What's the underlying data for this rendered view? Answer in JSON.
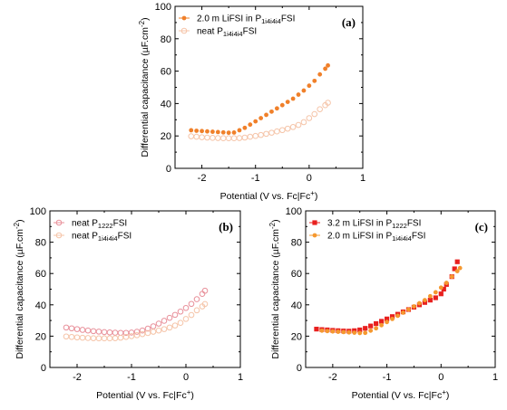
{
  "chart_data": [
    {
      "panel": "(a)",
      "type": "scatter",
      "xlabel_prefix": "Potential (V vs. Fc|Fc",
      "xlabel_sup": "+",
      "xlabel_suffix": ")",
      "ylabel_prefix": "Differential capacitance (µF.cm",
      "ylabel_sup": "-2",
      "ylabel_suffix": ")",
      "xlim": [
        -2.5,
        1
      ],
      "ylim": [
        0,
        100
      ],
      "xticks": [
        "-2",
        "-1",
        "0",
        "1"
      ],
      "yticks": [
        "0",
        "20",
        "40",
        "60",
        "80",
        "100"
      ],
      "legend_position": "top-left",
      "series": [
        {
          "name_main": "2.0 m LiFSI in P",
          "name_sub": "1i4i4i4",
          "name_tail": "FSI",
          "color": "#f0802a",
          "marker": "filled-circle",
          "points": [
            [
              -2.2,
              23.5
            ],
            [
              -2.1,
              23.2
            ],
            [
              -2.0,
              23.0
            ],
            [
              -1.9,
              22.8
            ],
            [
              -1.8,
              22.6
            ],
            [
              -1.7,
              22.4
            ],
            [
              -1.6,
              22.2
            ],
            [
              -1.5,
              22.0
            ],
            [
              -1.4,
              22.1
            ],
            [
              -1.3,
              23.5
            ],
            [
              -1.2,
              25.0
            ],
            [
              -1.1,
              27.0
            ],
            [
              -1.0,
              29.0
            ],
            [
              -0.9,
              31.0
            ],
            [
              -0.8,
              33.0
            ],
            [
              -0.7,
              35.0
            ],
            [
              -0.6,
              37.0
            ],
            [
              -0.5,
              39.0
            ],
            [
              -0.4,
              41.0
            ],
            [
              -0.3,
              43.0
            ],
            [
              -0.2,
              45.5
            ],
            [
              -0.1,
              48.0
            ],
            [
              0.0,
              51.0
            ],
            [
              0.1,
              54.0
            ],
            [
              0.2,
              58.0
            ],
            [
              0.3,
              61.5
            ],
            [
              0.35,
              63.5
            ]
          ]
        },
        {
          "name_main": "neat P",
          "name_sub": "1i4i4i4",
          "name_tail": "FSI",
          "color": "#f5c4a8",
          "marker": "hollow-circle",
          "points": [
            [
              -2.2,
              19.8
            ],
            [
              -2.1,
              19.5
            ],
            [
              -2.0,
              19.2
            ],
            [
              -1.9,
              19.0
            ],
            [
              -1.8,
              18.8
            ],
            [
              -1.7,
              18.7
            ],
            [
              -1.6,
              18.6
            ],
            [
              -1.5,
              18.6
            ],
            [
              -1.4,
              18.6
            ],
            [
              -1.3,
              18.7
            ],
            [
              -1.2,
              19.0
            ],
            [
              -1.1,
              19.5
            ],
            [
              -1.0,
              20.0
            ],
            [
              -0.9,
              20.6
            ],
            [
              -0.8,
              21.3
            ],
            [
              -0.7,
              22.0
            ],
            [
              -0.6,
              22.8
            ],
            [
              -0.5,
              23.6
            ],
            [
              -0.4,
              24.5
            ],
            [
              -0.3,
              25.5
            ],
            [
              -0.2,
              26.8
            ],
            [
              -0.1,
              28.5
            ],
            [
              0.0,
              31.0
            ],
            [
              0.1,
              33.5
            ],
            [
              0.2,
              36.5
            ],
            [
              0.3,
              39.0
            ],
            [
              0.35,
              40.5
            ]
          ]
        }
      ]
    },
    {
      "panel": "(b)",
      "type": "scatter",
      "xlabel_prefix": "Potential (V vs. Fc|Fc",
      "xlabel_sup": "+",
      "xlabel_suffix": ")",
      "ylabel_prefix": "Differential capacitance (µF.cm",
      "ylabel_sup": "-2",
      "ylabel_suffix": ")",
      "xlim": [
        -2.5,
        1
      ],
      "ylim": [
        0,
        100
      ],
      "xticks": [
        "-2",
        "-1",
        "0",
        "1"
      ],
      "yticks": [
        "0",
        "20",
        "40",
        "60",
        "80",
        "100"
      ],
      "legend_position": "top-left",
      "series": [
        {
          "name_main": "neat P",
          "name_sub": "1222",
          "name_tail": "FSI",
          "color": "#e8909a",
          "marker": "hollow-circle",
          "points": [
            [
              -2.2,
              25.5
            ],
            [
              -2.1,
              25.0
            ],
            [
              -2.0,
              24.5
            ],
            [
              -1.9,
              24.0
            ],
            [
              -1.8,
              23.6
            ],
            [
              -1.7,
              23.2
            ],
            [
              -1.6,
              22.9
            ],
            [
              -1.5,
              22.6
            ],
            [
              -1.4,
              22.4
            ],
            [
              -1.3,
              22.2
            ],
            [
              -1.2,
              22.1
            ],
            [
              -1.1,
              22.1
            ],
            [
              -1.0,
              22.3
            ],
            [
              -0.9,
              22.8
            ],
            [
              -0.8,
              23.6
            ],
            [
              -0.7,
              24.8
            ],
            [
              -0.6,
              26.3
            ],
            [
              -0.5,
              28.0
            ],
            [
              -0.4,
              29.8
            ],
            [
              -0.3,
              31.7
            ],
            [
              -0.2,
              33.6
            ],
            [
              -0.1,
              35.7
            ],
            [
              0.0,
              38.0
            ],
            [
              0.1,
              40.6
            ],
            [
              0.2,
              43.6
            ],
            [
              0.3,
              47.0
            ],
            [
              0.35,
              49.0
            ]
          ]
        },
        {
          "name_main": "neat P",
          "name_sub": "1i4i4i4",
          "name_tail": "FSI",
          "color": "#f5c4a8",
          "marker": "hollow-circle",
          "points": [
            [
              -2.2,
              19.8
            ],
            [
              -2.1,
              19.5
            ],
            [
              -2.0,
              19.2
            ],
            [
              -1.9,
              19.0
            ],
            [
              -1.8,
              18.8
            ],
            [
              -1.7,
              18.7
            ],
            [
              -1.6,
              18.6
            ],
            [
              -1.5,
              18.6
            ],
            [
              -1.4,
              18.6
            ],
            [
              -1.3,
              18.7
            ],
            [
              -1.2,
              19.0
            ],
            [
              -1.1,
              19.5
            ],
            [
              -1.0,
              20.0
            ],
            [
              -0.9,
              20.6
            ],
            [
              -0.8,
              21.3
            ],
            [
              -0.7,
              22.0
            ],
            [
              -0.6,
              22.8
            ],
            [
              -0.5,
              23.6
            ],
            [
              -0.4,
              24.5
            ],
            [
              -0.3,
              25.5
            ],
            [
              -0.2,
              26.8
            ],
            [
              -0.1,
              28.5
            ],
            [
              0.0,
              31.0
            ],
            [
              0.1,
              33.5
            ],
            [
              0.2,
              36.5
            ],
            [
              0.3,
              39.0
            ],
            [
              0.35,
              40.5
            ]
          ]
        }
      ]
    },
    {
      "panel": "(c)",
      "type": "scatter",
      "xlabel_prefix": "Potential (V vs. Fc|Fc",
      "xlabel_sup": "+",
      "xlabel_suffix": ")",
      "ylabel_prefix": "Differential capacitance (µF.cm",
      "ylabel_sup": "-2",
      "ylabel_suffix": ")",
      "xlim": [
        -2.5,
        1
      ],
      "ylim": [
        0,
        100
      ],
      "xticks": [
        "-2",
        "-1",
        "0",
        "1"
      ],
      "yticks": [
        "0",
        "20",
        "40",
        "60",
        "80",
        "100"
      ],
      "legend_position": "top-left",
      "series": [
        {
          "name_main": "3.2 m LiFSI in P",
          "name_sub": "1222",
          "name_tail": "FSI",
          "color": "#e8201e",
          "marker": "filled-square",
          "points": [
            [
              -2.3,
              24.5
            ],
            [
              -2.2,
              24.2
            ],
            [
              -2.1,
              24.0
            ],
            [
              -2.0,
              23.7
            ],
            [
              -1.9,
              23.5
            ],
            [
              -1.8,
              23.3
            ],
            [
              -1.7,
              23.2
            ],
            [
              -1.6,
              23.5
            ],
            [
              -1.5,
              24.0
            ],
            [
              -1.4,
              25.0
            ],
            [
              -1.3,
              26.5
            ],
            [
              -1.2,
              28.0
            ],
            [
              -1.1,
              29.5
            ],
            [
              -1.0,
              31.0
            ],
            [
              -0.9,
              32.5
            ],
            [
              -0.8,
              34.0
            ],
            [
              -0.7,
              35.5
            ],
            [
              -0.6,
              37.0
            ],
            [
              -0.5,
              38.5
            ],
            [
              -0.4,
              40.0
            ],
            [
              -0.3,
              41.5
            ],
            [
              -0.2,
              43.0
            ],
            [
              -0.1,
              44.5
            ],
            [
              0.0,
              47.0
            ],
            [
              0.05,
              50.0
            ],
            [
              0.1,
              53.0
            ],
            [
              0.2,
              58.0
            ],
            [
              0.25,
              63.0
            ],
            [
              0.3,
              67.5
            ]
          ]
        },
        {
          "name_main": "2.0 m LiFSI in P",
          "name_sub": "1i4i4i4",
          "name_tail": "FSI",
          "color": "#f5982f",
          "marker": "filled-circle",
          "points": [
            [
              -2.2,
              23.5
            ],
            [
              -2.1,
              23.2
            ],
            [
              -2.0,
              23.0
            ],
            [
              -1.9,
              22.8
            ],
            [
              -1.8,
              22.6
            ],
            [
              -1.7,
              22.4
            ],
            [
              -1.6,
              22.2
            ],
            [
              -1.5,
              22.0
            ],
            [
              -1.4,
              22.1
            ],
            [
              -1.3,
              23.5
            ],
            [
              -1.2,
              25.0
            ],
            [
              -1.1,
              27.0
            ],
            [
              -1.0,
              29.0
            ],
            [
              -0.9,
              31.0
            ],
            [
              -0.8,
              33.0
            ],
            [
              -0.7,
              35.0
            ],
            [
              -0.6,
              37.0
            ],
            [
              -0.5,
              39.0
            ],
            [
              -0.4,
              41.0
            ],
            [
              -0.3,
              43.0
            ],
            [
              -0.2,
              45.5
            ],
            [
              -0.1,
              48.0
            ],
            [
              0.0,
              51.0
            ],
            [
              0.1,
              54.0
            ],
            [
              0.2,
              58.0
            ],
            [
              0.3,
              61.5
            ],
            [
              0.35,
              63.5
            ]
          ]
        }
      ]
    }
  ]
}
